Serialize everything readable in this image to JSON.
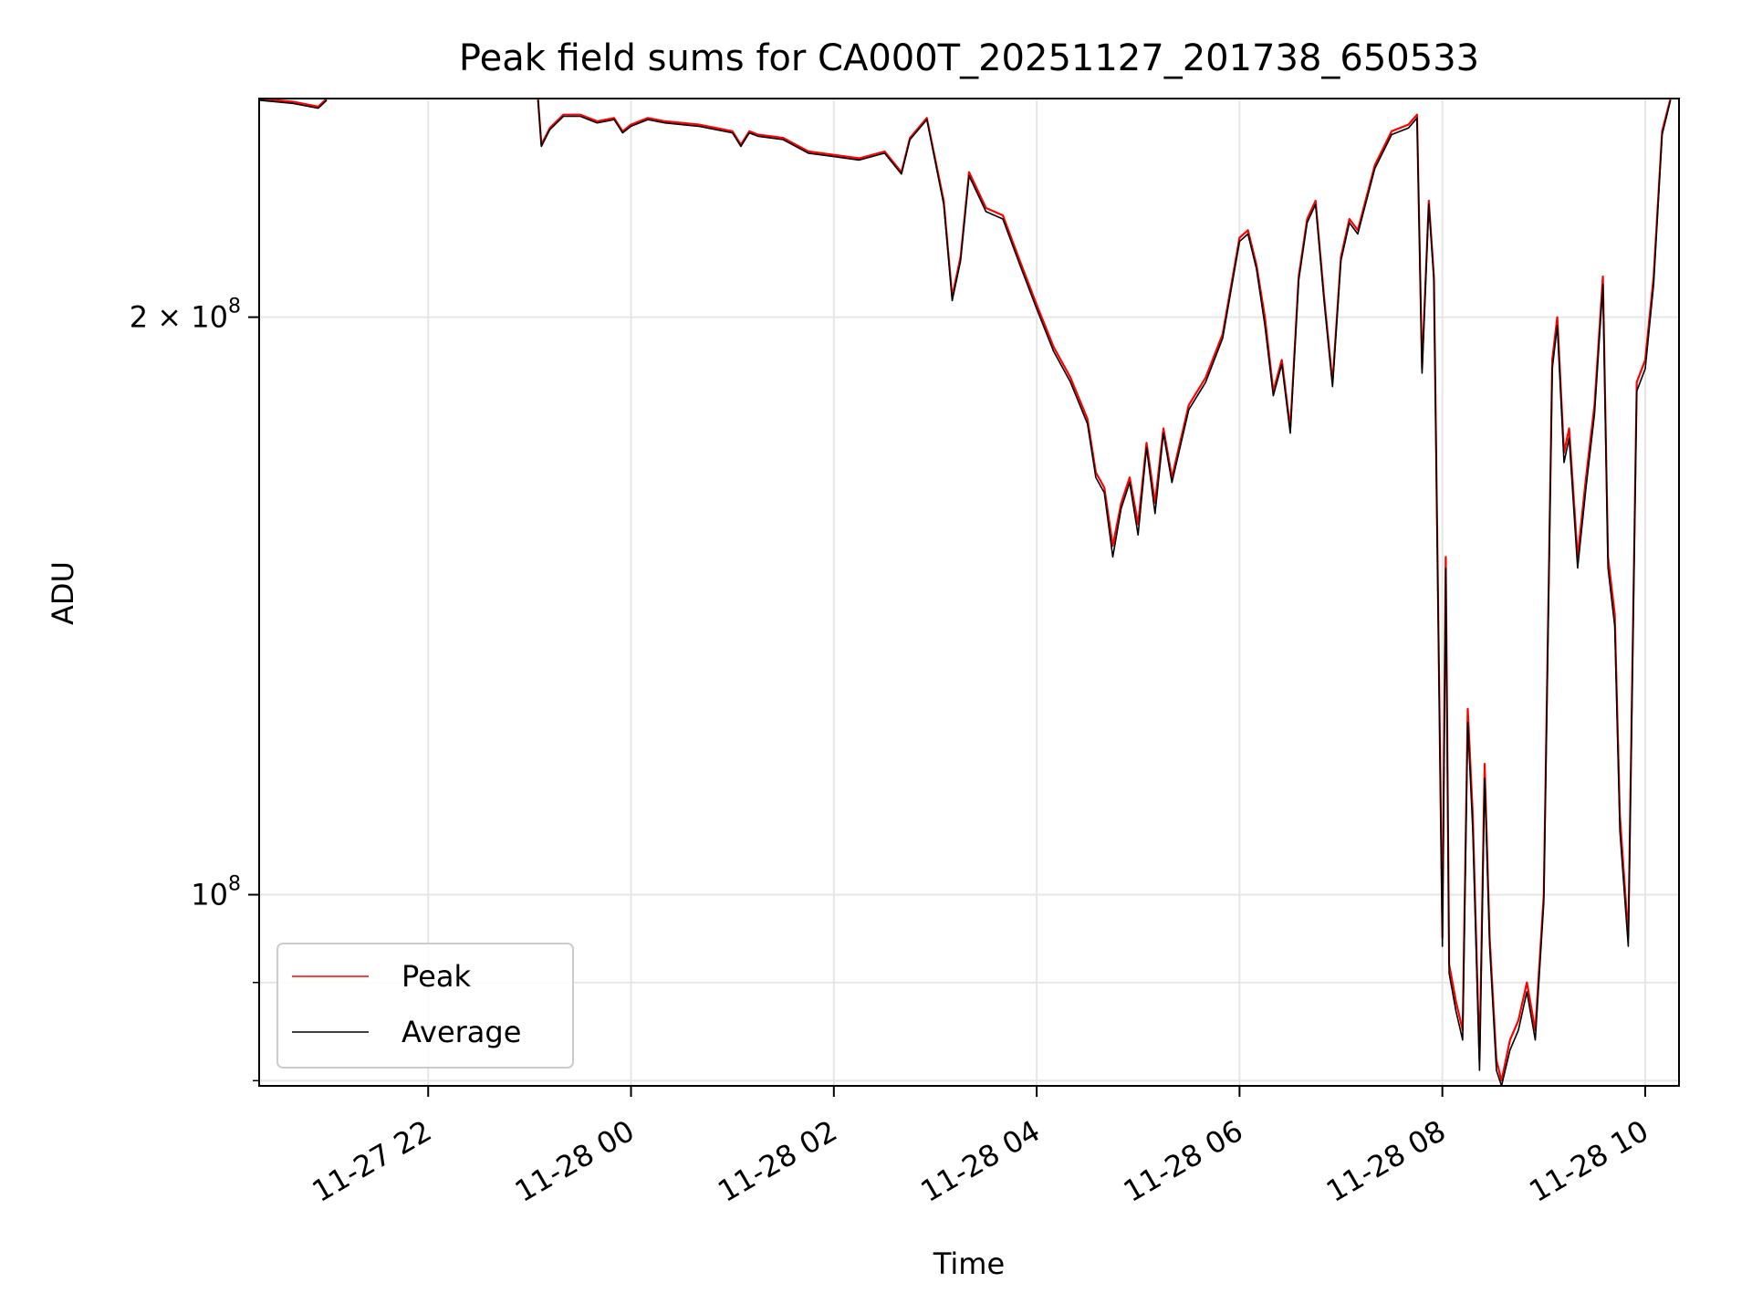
{
  "chart_data": {
    "type": "line",
    "title": "Peak field sums for CA000T_20251127_201738_650533",
    "xlabel": "Time",
    "ylabel": "ADU",
    "x_scale": "time",
    "y_scale": "log",
    "xlim": [
      "2025-11-27 20:20",
      "2025-11-28 10:20"
    ],
    "ylim": [
      79500000.0,
      260000000.0
    ],
    "grid": true,
    "legend_position": "lower-left",
    "x_ticks": [
      {
        "t": "2025-11-27 22:00",
        "label": "11-27 22"
      },
      {
        "t": "2025-11-28 00:00",
        "label": "11-28 00"
      },
      {
        "t": "2025-11-28 02:00",
        "label": "11-28 02"
      },
      {
        "t": "2025-11-28 04:00",
        "label": "11-28 04"
      },
      {
        "t": "2025-11-28 06:00",
        "label": "11-28 06"
      },
      {
        "t": "2025-11-28 08:00",
        "label": "11-28 08"
      },
      {
        "t": "2025-11-28 10:00",
        "label": "11-28 10"
      }
    ],
    "y_ticks_major": [
      {
        "value": 100000000,
        "mantissa": "",
        "base": "10",
        "exp": "8"
      },
      {
        "value": 200000000,
        "mantissa": "2 × ",
        "base": "10",
        "exp": "8"
      }
    ],
    "y_ticks_minor": [
      80000000,
      90000000
    ],
    "series": [
      {
        "name": "Peak",
        "color": "#ff0000",
        "x": [
          "2025-11-27 20:20",
          "2025-11-27 20:40",
          "2025-11-27 20:55",
          "2025-11-27 21:00",
          "2025-11-27 23:05",
          "2025-11-27 23:07",
          "2025-11-27 23:12",
          "2025-11-27 23:20",
          "2025-11-27 23:30",
          "2025-11-27 23:40",
          "2025-11-27 23:50",
          "2025-11-27 23:55",
          "2025-11-28 00:00",
          "2025-11-28 00:10",
          "2025-11-28 00:20",
          "2025-11-28 00:40",
          "2025-11-28 01:00",
          "2025-11-28 01:05",
          "2025-11-28 01:10",
          "2025-11-28 01:15",
          "2025-11-28 01:30",
          "2025-11-28 01:45",
          "2025-11-28 02:00",
          "2025-11-28 02:15",
          "2025-11-28 02:30",
          "2025-11-28 02:40",
          "2025-11-28 02:45",
          "2025-11-28 02:55",
          "2025-11-28 03:05",
          "2025-11-28 03:10",
          "2025-11-28 03:15",
          "2025-11-28 03:20",
          "2025-11-28 03:30",
          "2025-11-28 03:40",
          "2025-11-28 03:50",
          "2025-11-28 04:00",
          "2025-11-28 04:10",
          "2025-11-28 04:20",
          "2025-11-28 04:30",
          "2025-11-28 04:35",
          "2025-11-28 04:40",
          "2025-11-28 04:45",
          "2025-11-28 04:50",
          "2025-11-28 04:55",
          "2025-11-28 05:00",
          "2025-11-28 05:05",
          "2025-11-28 05:10",
          "2025-11-28 05:15",
          "2025-11-28 05:20",
          "2025-11-28 05:30",
          "2025-11-28 05:40",
          "2025-11-28 05:50",
          "2025-11-28 06:00",
          "2025-11-28 06:05",
          "2025-11-28 06:10",
          "2025-11-28 06:15",
          "2025-11-28 06:20",
          "2025-11-28 06:25",
          "2025-11-28 06:30",
          "2025-11-28 06:35",
          "2025-11-28 06:40",
          "2025-11-28 06:45",
          "2025-11-28 06:50",
          "2025-11-28 06:55",
          "2025-11-28 07:00",
          "2025-11-28 07:05",
          "2025-11-28 07:10",
          "2025-11-28 07:20",
          "2025-11-28 07:30",
          "2025-11-28 07:40",
          "2025-11-28 07:45",
          "2025-11-28 07:48",
          "2025-11-28 07:52",
          "2025-11-28 07:55",
          "2025-11-28 08:00",
          "2025-11-28 08:02",
          "2025-11-28 08:04",
          "2025-11-28 08:08",
          "2025-11-28 08:12",
          "2025-11-28 08:15",
          "2025-11-28 08:18",
          "2025-11-28 08:22",
          "2025-11-28 08:25",
          "2025-11-28 08:28",
          "2025-11-28 08:32",
          "2025-11-28 08:35",
          "2025-11-28 08:40",
          "2025-11-28 08:45",
          "2025-11-28 08:50",
          "2025-11-28 08:55",
          "2025-11-28 09:00",
          "2025-11-28 09:05",
          "2025-11-28 09:08",
          "2025-11-28 09:12",
          "2025-11-28 09:15",
          "2025-11-28 09:20",
          "2025-11-28 09:25",
          "2025-11-28 09:30",
          "2025-11-28 09:35",
          "2025-11-28 09:38",
          "2025-11-28 09:42",
          "2025-11-28 09:45",
          "2025-11-28 09:50",
          "2025-11-28 09:55",
          "2025-11-28 10:00",
          "2025-11-28 10:05",
          "2025-11-28 10:10",
          "2025-11-28 10:15"
        ],
        "y": [
          260000000,
          259000000,
          257500000,
          260000000,
          260000000,
          246000000,
          251000000,
          255000000,
          255000000,
          253000000,
          254000000,
          250000000,
          252000000,
          254000000,
          253000000,
          252000000,
          250000000,
          246000000,
          250000000,
          249000000,
          248000000,
          244000000,
          243000000,
          242000000,
          244000000,
          238000000,
          248000000,
          254000000,
          230000000,
          205000000,
          215000000,
          238000000,
          228000000,
          226000000,
          214000000,
          203000000,
          193000000,
          186000000,
          177000000,
          166000000,
          163000000,
          152000000,
          160000000,
          165000000,
          156000000,
          172000000,
          160000000,
          175000000,
          165000000,
          180000000,
          186000000,
          196000000,
          220000000,
          222000000,
          213000000,
          200000000,
          183000000,
          190000000,
          175000000,
          210000000,
          225000000,
          230000000,
          205000000,
          185000000,
          215000000,
          225000000,
          222000000,
          240000000,
          250000000,
          252000000,
          255000000,
          188000000,
          230000000,
          210000000,
          95000000,
          150000000,
          92000000,
          88000000,
          85000000,
          125000000,
          110000000,
          82000000,
          117000000,
          95000000,
          82000000,
          80000000,
          84000000,
          86000000,
          90000000,
          85000000,
          100000000,
          190000000,
          200000000,
          170000000,
          175000000,
          150000000,
          165000000,
          180000000,
          210000000,
          150000000,
          140000000,
          110000000,
          95000000,
          185000000,
          190000000,
          210000000,
          250000000,
          260000000
        ]
      },
      {
        "name": "Average",
        "color": "#000000",
        "x": [
          "2025-11-27 20:20",
          "2025-11-27 20:40",
          "2025-11-27 20:55",
          "2025-11-27 21:00",
          "2025-11-27 23:05",
          "2025-11-27 23:07",
          "2025-11-27 23:12",
          "2025-11-27 23:20",
          "2025-11-27 23:30",
          "2025-11-27 23:40",
          "2025-11-27 23:50",
          "2025-11-27 23:55",
          "2025-11-28 00:00",
          "2025-11-28 00:10",
          "2025-11-28 00:20",
          "2025-11-28 00:40",
          "2025-11-28 01:00",
          "2025-11-28 01:05",
          "2025-11-28 01:10",
          "2025-11-28 01:15",
          "2025-11-28 01:30",
          "2025-11-28 01:45",
          "2025-11-28 02:00",
          "2025-11-28 02:15",
          "2025-11-28 02:30",
          "2025-11-28 02:40",
          "2025-11-28 02:45",
          "2025-11-28 02:55",
          "2025-11-28 03:05",
          "2025-11-28 03:10",
          "2025-11-28 03:15",
          "2025-11-28 03:20",
          "2025-11-28 03:30",
          "2025-11-28 03:40",
          "2025-11-28 03:50",
          "2025-11-28 04:00",
          "2025-11-28 04:10",
          "2025-11-28 04:20",
          "2025-11-28 04:30",
          "2025-11-28 04:35",
          "2025-11-28 04:40",
          "2025-11-28 04:45",
          "2025-11-28 04:50",
          "2025-11-28 04:55",
          "2025-11-28 05:00",
          "2025-11-28 05:05",
          "2025-11-28 05:10",
          "2025-11-28 05:15",
          "2025-11-28 05:20",
          "2025-11-28 05:30",
          "2025-11-28 05:40",
          "2025-11-28 05:50",
          "2025-11-28 06:00",
          "2025-11-28 06:05",
          "2025-11-28 06:10",
          "2025-11-28 06:15",
          "2025-11-28 06:20",
          "2025-11-28 06:25",
          "2025-11-28 06:30",
          "2025-11-28 06:35",
          "2025-11-28 06:40",
          "2025-11-28 06:45",
          "2025-11-28 06:50",
          "2025-11-28 06:55",
          "2025-11-28 07:00",
          "2025-11-28 07:05",
          "2025-11-28 07:10",
          "2025-11-28 07:20",
          "2025-11-28 07:30",
          "2025-11-28 07:40",
          "2025-11-28 07:45",
          "2025-11-28 07:48",
          "2025-11-28 07:52",
          "2025-11-28 07:55",
          "2025-11-28 08:00",
          "2025-11-28 08:02",
          "2025-11-28 08:04",
          "2025-11-28 08:08",
          "2025-11-28 08:12",
          "2025-11-28 08:15",
          "2025-11-28 08:18",
          "2025-11-28 08:22",
          "2025-11-28 08:25",
          "2025-11-28 08:28",
          "2025-11-28 08:32",
          "2025-11-28 08:35",
          "2025-11-28 08:40",
          "2025-11-28 08:45",
          "2025-11-28 08:50",
          "2025-11-28 08:55",
          "2025-11-28 09:00",
          "2025-11-28 09:05",
          "2025-11-28 09:08",
          "2025-11-28 09:12",
          "2025-11-28 09:15",
          "2025-11-28 09:20",
          "2025-11-28 09:25",
          "2025-11-28 09:30",
          "2025-11-28 09:35",
          "2025-11-28 09:38",
          "2025-11-28 09:42",
          "2025-11-28 09:45",
          "2025-11-28 09:50",
          "2025-11-28 09:55",
          "2025-11-28 10:00",
          "2025-11-28 10:05",
          "2025-11-28 10:10",
          "2025-11-28 10:15"
        ],
        "y": [
          259500000,
          258500000,
          257000000,
          259500000,
          259500000,
          245500000,
          250500000,
          254500000,
          254500000,
          252500000,
          253500000,
          249500000,
          251500000,
          253500000,
          252500000,
          251500000,
          249500000,
          245500000,
          249500000,
          248500000,
          247500000,
          243500000,
          242500000,
          241500000,
          243500000,
          237500000,
          247500000,
          253500000,
          229000000,
          204000000,
          214000000,
          237000000,
          227000000,
          225000000,
          213000000,
          202000000,
          192000000,
          185000000,
          176000000,
          165000000,
          162000000,
          150000000,
          159000000,
          164000000,
          154000000,
          171000000,
          158000000,
          174000000,
          164000000,
          179000000,
          185000000,
          195000000,
          219000000,
          221000000,
          212000000,
          198000000,
          182000000,
          189000000,
          174000000,
          209000000,
          224000000,
          229000000,
          204000000,
          184000000,
          214000000,
          224000000,
          221000000,
          239000000,
          249000000,
          251000000,
          254000000,
          187000000,
          229000000,
          209000000,
          94000000,
          148000000,
          91000000,
          87000000,
          84000000,
          123000000,
          108000000,
          81000000,
          115000000,
          94000000,
          81000000,
          79500000,
          83000000,
          85000000,
          89000000,
          84000000,
          99000000,
          188000000,
          198000000,
          168000000,
          173000000,
          148000000,
          163000000,
          178000000,
          208000000,
          148000000,
          138000000,
          108000000,
          94000000,
          183000000,
          188000000,
          208000000,
          249000000,
          259500000
        ]
      }
    ]
  }
}
